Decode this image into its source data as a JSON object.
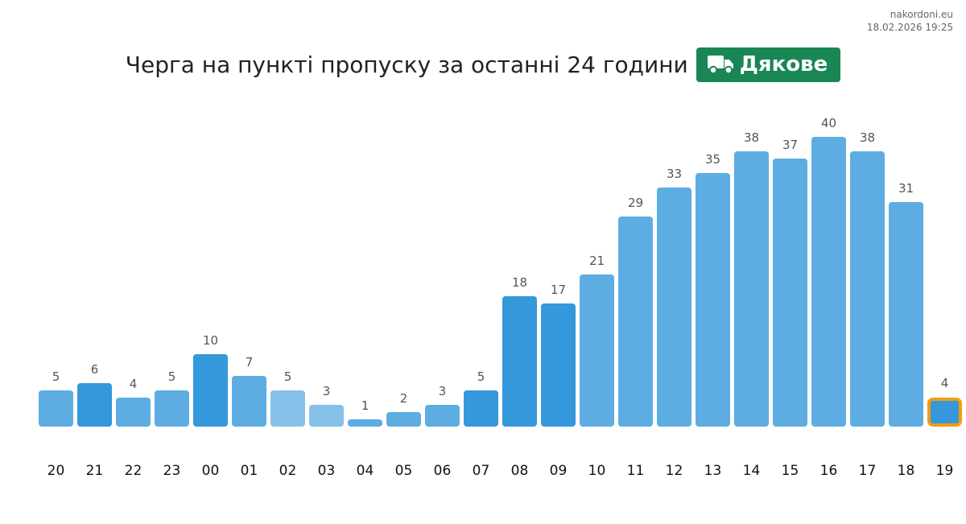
{
  "source": {
    "site": "nakordoni.eu",
    "timestamp": "18.02.2026 19:25"
  },
  "header": {
    "title": "Черга на пункті пропуску за останні 24 години",
    "badge_label": "Дякове",
    "badge_icon": "truck-icon",
    "badge_color": "#198754"
  },
  "colors": {
    "bar_default": "#5dade2",
    "bar_dark": "#3498db",
    "bar_light": "#85c1e9",
    "highlight_border": "#f39c12"
  },
  "chart_data": {
    "type": "bar",
    "categories": [
      "20",
      "21",
      "22",
      "23",
      "00",
      "01",
      "02",
      "03",
      "04",
      "05",
      "06",
      "07",
      "08",
      "09",
      "10",
      "11",
      "12",
      "13",
      "14",
      "15",
      "16",
      "17",
      "18",
      "19"
    ],
    "values": [
      5,
      6,
      4,
      5,
      10,
      7,
      5,
      3,
      1,
      2,
      3,
      5,
      18,
      17,
      21,
      29,
      33,
      35,
      38,
      37,
      40,
      38,
      31,
      4
    ],
    "shades": [
      "default",
      "dark",
      "default",
      "default",
      "dark",
      "default",
      "light",
      "light",
      "default",
      "default",
      "default",
      "dark",
      "dark",
      "dark",
      "default",
      "default",
      "default",
      "default",
      "default",
      "default",
      "default",
      "default",
      "default",
      "dark"
    ],
    "highlight_index": 23,
    "ylim": [
      0,
      40
    ],
    "grid": false,
    "legend": false
  }
}
